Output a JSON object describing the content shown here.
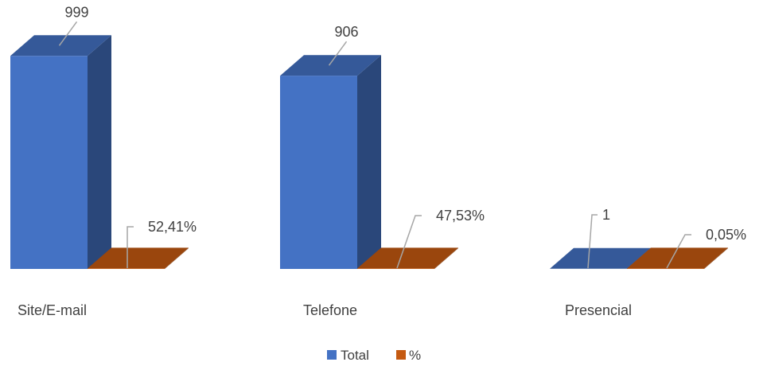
{
  "chart_data": {
    "type": "bar",
    "style": "3d-column",
    "categories": [
      "Site/E-mail",
      "Telefone",
      "Presencial"
    ],
    "series": [
      {
        "name": "Total",
        "values": [
          999,
          906,
          1
        ],
        "labels": [
          "999",
          "906",
          "1"
        ],
        "color": "#4472c4"
      },
      {
        "name": "%",
        "values": [
          52.41,
          47.53,
          0.05
        ],
        "labels": [
          "52,41%",
          "47,53%",
          "0,05%"
        ],
        "color": "#c55a11"
      }
    ],
    "title": "",
    "xlabel": "",
    "ylabel": "",
    "ylim": [
      0,
      1000
    ],
    "grid": false,
    "legend": "bottom"
  }
}
